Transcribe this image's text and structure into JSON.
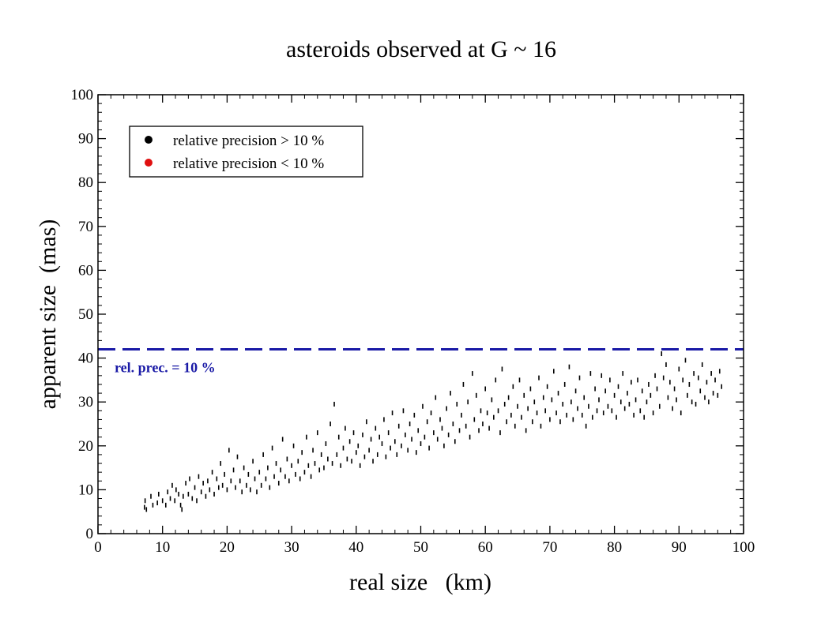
{
  "chart_data": {
    "type": "scatter",
    "title": "asteroids observed at G ~ 16",
    "xlabel": "real size   (km)",
    "ylabel": "apparent size  (mas)",
    "xlim": [
      0,
      100
    ],
    "ylim": [
      0,
      100
    ],
    "x_ticks": [
      "0",
      "10",
      "20",
      "30",
      "40",
      "50",
      "60",
      "70",
      "80",
      "90",
      "100"
    ],
    "y_ticks": [
      "0",
      "10",
      "20",
      "30",
      "40",
      "50",
      "60",
      "70",
      "80",
      "90",
      "100"
    ],
    "x_tick_values": [
      0,
      10,
      20,
      30,
      40,
      50,
      60,
      70,
      80,
      90,
      100
    ],
    "y_tick_values": [
      0,
      10,
      20,
      30,
      40,
      50,
      60,
      70,
      80,
      90,
      100
    ],
    "grid": false,
    "legend": {
      "placement": "top-left",
      "entries": [
        {
          "label": "relative precision > 10 %",
          "color": "#000000"
        },
        {
          "label": "relative precision < 10 %",
          "color": "#e01010"
        }
      ]
    },
    "threshold": {
      "y": 42,
      "label": "rel. prec. = 10 %",
      "color": "#1a1aa6",
      "style": "dashed"
    },
    "series": [
      {
        "name": "relative precision > 10 %",
        "color": "#000000",
        "points": [
          [
            7.2,
            6.0
          ],
          [
            7.3,
            7.5
          ],
          [
            7.5,
            5.5
          ],
          [
            8.2,
            8.5
          ],
          [
            8.5,
            6.5
          ],
          [
            9.2,
            7.0
          ],
          [
            9.4,
            9.0
          ],
          [
            10.0,
            7.5
          ],
          [
            10.5,
            6.5
          ],
          [
            10.8,
            9.5
          ],
          [
            11.2,
            8.0
          ],
          [
            11.5,
            11.0
          ],
          [
            11.9,
            7.5
          ],
          [
            12.1,
            10.0
          ],
          [
            12.5,
            9.0
          ],
          [
            12.8,
            6.5
          ],
          [
            13.0,
            5.5
          ],
          [
            13.2,
            8.5
          ],
          [
            13.6,
            11.5
          ],
          [
            14.0,
            9.0
          ],
          [
            14.2,
            12.5
          ],
          [
            14.6,
            8.0
          ],
          [
            15.0,
            10.5
          ],
          [
            15.3,
            7.5
          ],
          [
            15.6,
            13.0
          ],
          [
            16.0,
            9.5
          ],
          [
            16.3,
            11.5
          ],
          [
            16.7,
            8.5
          ],
          [
            17.0,
            12.0
          ],
          [
            17.3,
            10.0
          ],
          [
            17.7,
            14.0
          ],
          [
            18.0,
            9.0
          ],
          [
            18.4,
            12.5
          ],
          [
            18.7,
            10.5
          ],
          [
            19.0,
            16.0
          ],
          [
            19.3,
            11.0
          ],
          [
            19.6,
            13.5
          ],
          [
            20.0,
            10.0
          ],
          [
            20.3,
            19.0
          ],
          [
            20.6,
            12.0
          ],
          [
            21.0,
            14.5
          ],
          [
            21.3,
            10.5
          ],
          [
            21.6,
            17.5
          ],
          [
            22.0,
            12.0
          ],
          [
            22.3,
            9.5
          ],
          [
            22.6,
            15.0
          ],
          [
            23.0,
            11.0
          ],
          [
            23.3,
            13.5
          ],
          [
            23.6,
            10.0
          ],
          [
            24.0,
            16.5
          ],
          [
            24.3,
            12.5
          ],
          [
            24.6,
            9.5
          ],
          [
            25.0,
            14.0
          ],
          [
            25.3,
            11.0
          ],
          [
            25.6,
            18.0
          ],
          [
            26.0,
            12.5
          ],
          [
            26.3,
            15.0
          ],
          [
            26.6,
            10.5
          ],
          [
            27.0,
            19.5
          ],
          [
            27.3,
            13.0
          ],
          [
            27.6,
            16.0
          ],
          [
            28.0,
            11.5
          ],
          [
            28.3,
            14.5
          ],
          [
            28.6,
            21.5
          ],
          [
            29.0,
            13.0
          ],
          [
            29.3,
            17.0
          ],
          [
            29.6,
            12.0
          ],
          [
            30.0,
            15.5
          ],
          [
            30.3,
            20.0
          ],
          [
            30.6,
            13.5
          ],
          [
            31.0,
            16.5
          ],
          [
            31.3,
            12.5
          ],
          [
            31.6,
            18.5
          ],
          [
            32.0,
            14.0
          ],
          [
            32.3,
            22.0
          ],
          [
            32.6,
            15.5
          ],
          [
            33.0,
            13.0
          ],
          [
            33.3,
            19.0
          ],
          [
            33.6,
            16.0
          ],
          [
            34.0,
            23.0
          ],
          [
            34.3,
            14.5
          ],
          [
            34.6,
            18.0
          ],
          [
            35.0,
            15.0
          ],
          [
            35.3,
            20.5
          ],
          [
            35.6,
            17.0
          ],
          [
            36.0,
            25.0
          ],
          [
            36.3,
            16.0
          ],
          [
            36.6,
            29.5
          ],
          [
            37.0,
            18.0
          ],
          [
            37.3,
            22.0
          ],
          [
            37.6,
            15.5
          ],
          [
            38.0,
            19.5
          ],
          [
            38.3,
            24.0
          ],
          [
            38.6,
            17.0
          ],
          [
            39.0,
            21.0
          ],
          [
            39.3,
            16.5
          ],
          [
            39.6,
            23.0
          ],
          [
            40.0,
            18.5
          ],
          [
            40.3,
            20.0
          ],
          [
            40.6,
            15.5
          ],
          [
            41.0,
            22.5
          ],
          [
            41.3,
            17.5
          ],
          [
            41.6,
            25.5
          ],
          [
            42.0,
            19.0
          ],
          [
            42.3,
            21.5
          ],
          [
            42.6,
            16.5
          ],
          [
            43.0,
            24.0
          ],
          [
            43.3,
            18.0
          ],
          [
            43.6,
            22.0
          ],
          [
            44.0,
            20.5
          ],
          [
            44.3,
            26.0
          ],
          [
            44.6,
            17.5
          ],
          [
            45.0,
            23.0
          ],
          [
            45.3,
            19.5
          ],
          [
            45.6,
            27.5
          ],
          [
            46.0,
            21.0
          ],
          [
            46.3,
            18.0
          ],
          [
            46.6,
            24.5
          ],
          [
            47.0,
            20.0
          ],
          [
            47.3,
            28.0
          ],
          [
            47.6,
            22.5
          ],
          [
            48.0,
            19.0
          ],
          [
            48.3,
            25.0
          ],
          [
            48.6,
            21.5
          ],
          [
            49.0,
            27.0
          ],
          [
            49.3,
            18.5
          ],
          [
            49.6,
            23.5
          ],
          [
            50.0,
            20.5
          ],
          [
            50.3,
            29.0
          ],
          [
            50.6,
            22.0
          ],
          [
            51.0,
            25.5
          ],
          [
            51.3,
            19.5
          ],
          [
            51.6,
            27.5
          ],
          [
            52.0,
            23.0
          ],
          [
            52.3,
            31.0
          ],
          [
            52.6,
            21.5
          ],
          [
            53.0,
            26.0
          ],
          [
            53.3,
            24.0
          ],
          [
            53.6,
            20.0
          ],
          [
            54.0,
            28.5
          ],
          [
            54.3,
            22.5
          ],
          [
            54.6,
            32.0
          ],
          [
            55.0,
            25.0
          ],
          [
            55.3,
            21.0
          ],
          [
            55.6,
            29.5
          ],
          [
            56.0,
            23.5
          ],
          [
            56.3,
            27.0
          ],
          [
            56.6,
            34.0
          ],
          [
            57.0,
            24.5
          ],
          [
            57.3,
            30.0
          ],
          [
            57.6,
            22.0
          ],
          [
            58.0,
            36.5
          ],
          [
            58.3,
            26.0
          ],
          [
            58.6,
            31.5
          ],
          [
            59.0,
            23.5
          ],
          [
            59.3,
            28.0
          ],
          [
            59.6,
            25.0
          ],
          [
            60.0,
            33.0
          ],
          [
            60.3,
            27.5
          ],
          [
            60.6,
            24.0
          ],
          [
            61.0,
            30.5
          ],
          [
            61.3,
            26.5
          ],
          [
            61.6,
            35.0
          ],
          [
            62.0,
            28.0
          ],
          [
            62.3,
            23.0
          ],
          [
            62.6,
            37.5
          ],
          [
            63.0,
            29.5
          ],
          [
            63.3,
            25.5
          ],
          [
            63.6,
            31.0
          ],
          [
            64.0,
            27.0
          ],
          [
            64.3,
            33.5
          ],
          [
            64.6,
            24.5
          ],
          [
            65.0,
            29.0
          ],
          [
            65.3,
            35.0
          ],
          [
            65.6,
            26.5
          ],
          [
            66.0,
            31.5
          ],
          [
            66.3,
            23.5
          ],
          [
            66.6,
            28.5
          ],
          [
            67.0,
            33.0
          ],
          [
            67.3,
            25.5
          ],
          [
            67.6,
            30.0
          ],
          [
            68.0,
            27.5
          ],
          [
            68.3,
            35.5
          ],
          [
            68.6,
            24.5
          ],
          [
            69.0,
            31.0
          ],
          [
            69.3,
            28.0
          ],
          [
            69.6,
            33.5
          ],
          [
            70.0,
            26.0
          ],
          [
            70.3,
            30.5
          ],
          [
            70.6,
            37.0
          ],
          [
            71.0,
            27.5
          ],
          [
            71.3,
            32.0
          ],
          [
            71.6,
            25.5
          ],
          [
            72.0,
            29.5
          ],
          [
            72.3,
            34.0
          ],
          [
            72.6,
            27.0
          ],
          [
            73.0,
            38.0
          ],
          [
            73.3,
            30.0
          ],
          [
            73.6,
            26.0
          ],
          [
            74.0,
            32.5
          ],
          [
            74.3,
            28.5
          ],
          [
            74.6,
            35.5
          ],
          [
            75.0,
            27.0
          ],
          [
            75.3,
            31.0
          ],
          [
            75.6,
            24.5
          ],
          [
            76.0,
            29.0
          ],
          [
            76.3,
            36.5
          ],
          [
            76.6,
            26.5
          ],
          [
            77.0,
            33.0
          ],
          [
            77.3,
            28.0
          ],
          [
            77.6,
            30.5
          ],
          [
            78.0,
            36.0
          ],
          [
            78.3,
            27.5
          ],
          [
            78.6,
            32.5
          ],
          [
            79.0,
            29.0
          ],
          [
            79.3,
            35.0
          ],
          [
            79.6,
            28.0
          ],
          [
            80.0,
            31.5
          ],
          [
            80.3,
            26.5
          ],
          [
            80.6,
            33.5
          ],
          [
            81.0,
            30.0
          ],
          [
            81.3,
            36.5
          ],
          [
            81.6,
            28.5
          ],
          [
            82.0,
            32.0
          ],
          [
            82.3,
            29.5
          ],
          [
            82.6,
            34.5
          ],
          [
            83.0,
            27.0
          ],
          [
            83.3,
            30.5
          ],
          [
            83.6,
            35.0
          ],
          [
            84.0,
            28.0
          ],
          [
            84.3,
            32.5
          ],
          [
            84.6,
            26.5
          ],
          [
            85.0,
            30.0
          ],
          [
            85.3,
            34.0
          ],
          [
            85.6,
            31.5
          ],
          [
            86.0,
            27.5
          ],
          [
            86.3,
            36.0
          ],
          [
            86.6,
            33.0
          ],
          [
            87.0,
            29.0
          ],
          [
            87.3,
            41.0
          ],
          [
            87.6,
            35.5
          ],
          [
            88.0,
            38.5
          ],
          [
            88.3,
            31.0
          ],
          [
            88.6,
            34.5
          ],
          [
            89.0,
            28.5
          ],
          [
            89.3,
            33.0
          ],
          [
            89.6,
            30.5
          ],
          [
            90.0,
            37.5
          ],
          [
            90.3,
            27.5
          ],
          [
            90.6,
            35.0
          ],
          [
            91.0,
            39.5
          ],
          [
            91.3,
            31.5
          ],
          [
            91.6,
            34.0
          ],
          [
            92.0,
            30.0
          ],
          [
            92.3,
            36.5
          ],
          [
            92.6,
            29.5
          ],
          [
            93.0,
            35.5
          ],
          [
            93.3,
            32.5
          ],
          [
            93.6,
            38.5
          ],
          [
            94.0,
            31.0
          ],
          [
            94.3,
            34.5
          ],
          [
            94.6,
            30.0
          ],
          [
            95.0,
            36.5
          ],
          [
            95.3,
            32.0
          ],
          [
            95.6,
            35.0
          ],
          [
            96.0,
            31.5
          ],
          [
            96.3,
            37.0
          ],
          [
            96.6,
            33.5
          ]
        ]
      }
    ]
  }
}
